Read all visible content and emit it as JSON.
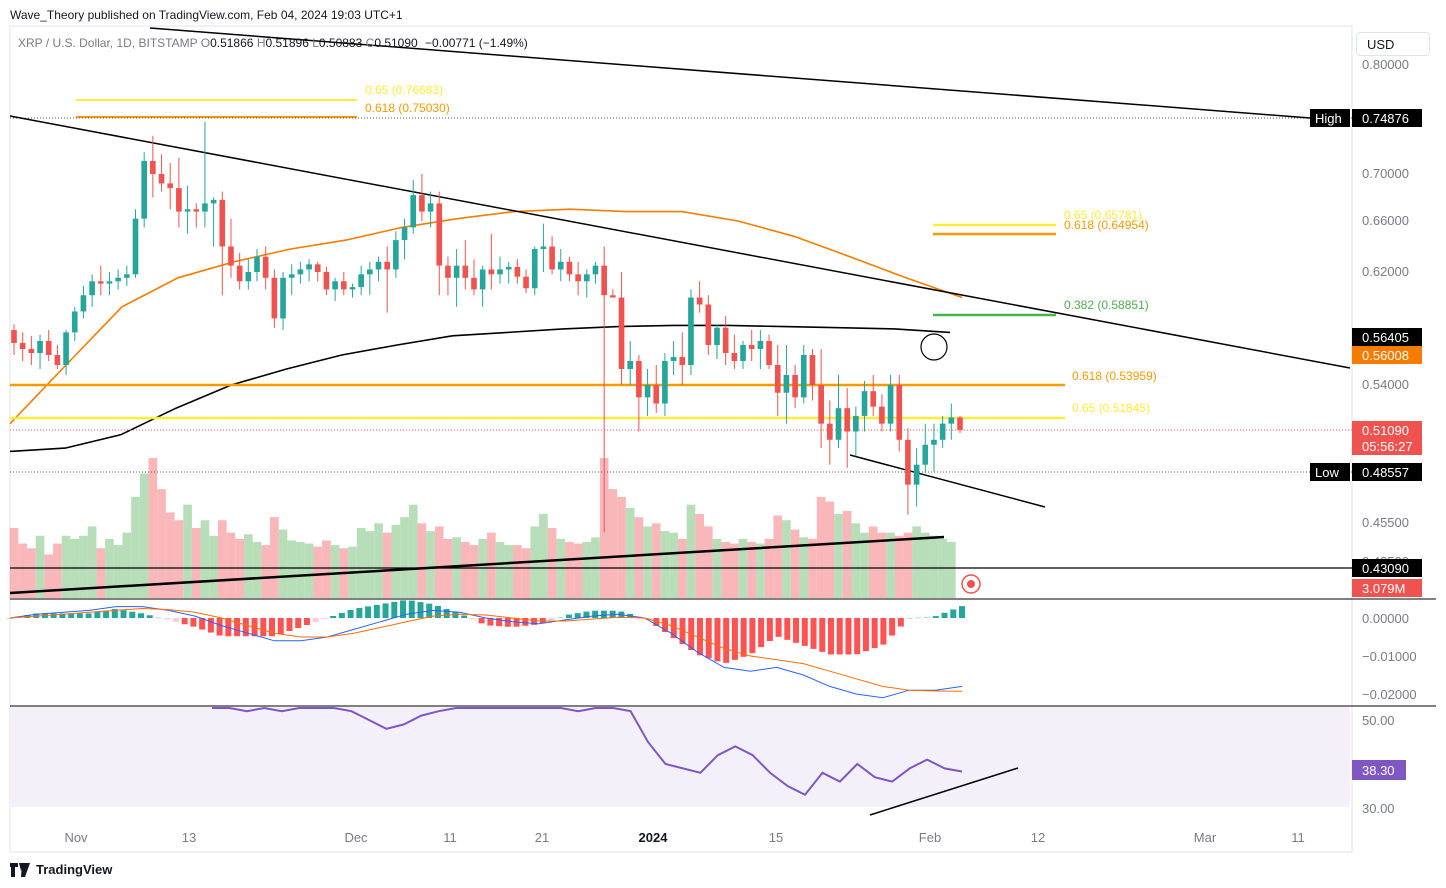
{
  "publisher": "Wave_Theory published on TradingView.com, Feb 04, 2024 19:03 UTC+1",
  "legend": {
    "symbol": "XRP / U.S. Dollar, 1D, BITSTAMP",
    "o_label": "O",
    "o": "0.51866",
    "h_label": "H",
    "h": "0.51896",
    "l_label": "L",
    "l": "0.50883",
    "c_label": "C",
    "c": "0.51090",
    "change": "−0.00771 (−1.49%)"
  },
  "currency_button": "USD",
  "footer": {
    "brand": "TradingView"
  },
  "colors": {
    "up": "#26a69a",
    "down": "#ef5350",
    "ema50": "#f57c00",
    "ema200": "#000000",
    "fib_yellow": "#ffeb3b",
    "fib_orange": "#f59a00",
    "fib_green": "#4caf50",
    "macd": "#2962ff",
    "signal": "#ff6d00",
    "rsi": "#7e57c2"
  },
  "chart_data": {
    "type": "candlestick",
    "x_ticks": [
      "Nov",
      "13",
      "Dec",
      "11",
      "21",
      "2024",
      "15",
      "Feb",
      "12",
      "Mar",
      "11"
    ],
    "price_axis": [
      "0.80000",
      "0.70000",
      "0.66000",
      "0.62000",
      "0.54000",
      "0.45500",
      "0.42500"
    ],
    "ylim": [
      0.42,
      0.81
    ],
    "candles": [
      [
        0.57,
        0.575,
        0.555,
        0.561
      ],
      [
        0.561,
        0.568,
        0.552,
        0.558
      ],
      [
        0.558,
        0.565,
        0.55,
        0.556
      ],
      [
        0.556,
        0.566,
        0.548,
        0.562
      ],
      [
        0.562,
        0.57,
        0.552,
        0.555
      ],
      [
        0.555,
        0.56,
        0.548,
        0.55
      ],
      [
        0.55,
        0.57,
        0.545,
        0.568
      ],
      [
        0.568,
        0.59,
        0.562,
        0.586
      ],
      [
        0.586,
        0.608,
        0.58,
        0.6
      ],
      [
        0.6,
        0.618,
        0.59,
        0.612
      ],
      [
        0.612,
        0.625,
        0.6,
        0.61
      ],
      [
        0.61,
        0.62,
        0.6,
        0.612
      ],
      [
        0.612,
        0.622,
        0.605,
        0.615
      ],
      [
        0.615,
        0.625,
        0.608,
        0.618
      ],
      [
        0.618,
        0.67,
        0.615,
        0.662
      ],
      [
        0.662,
        0.72,
        0.655,
        0.712
      ],
      [
        0.712,
        0.735,
        0.68,
        0.7
      ],
      [
        0.7,
        0.718,
        0.685,
        0.692
      ],
      [
        0.692,
        0.71,
        0.67,
        0.688
      ],
      [
        0.688,
        0.715,
        0.655,
        0.668
      ],
      [
        0.668,
        0.69,
        0.65,
        0.67
      ],
      [
        0.67,
        0.675,
        0.655,
        0.668
      ],
      [
        0.668,
        0.748,
        0.655,
        0.675
      ],
      [
        0.675,
        0.68,
        0.64,
        0.678
      ],
      [
        0.678,
        0.685,
        0.6,
        0.64
      ],
      [
        0.64,
        0.662,
        0.615,
        0.625
      ],
      [
        0.625,
        0.635,
        0.605,
        0.612
      ],
      [
        0.612,
        0.63,
        0.605,
        0.62
      ],
      [
        0.62,
        0.638,
        0.612,
        0.632
      ],
      [
        0.632,
        0.64,
        0.605,
        0.615
      ],
      [
        0.615,
        0.622,
        0.572,
        0.58
      ],
      [
        0.58,
        0.62,
        0.57,
        0.615
      ],
      [
        0.615,
        0.626,
        0.6,
        0.618
      ],
      [
        0.618,
        0.628,
        0.61,
        0.622
      ],
      [
        0.622,
        0.63,
        0.612,
        0.626
      ],
      [
        0.626,
        0.628,
        0.612,
        0.62
      ],
      [
        0.62,
        0.624,
        0.6,
        0.605
      ],
      [
        0.605,
        0.615,
        0.595,
        0.612
      ],
      [
        0.612,
        0.62,
        0.6,
        0.605
      ],
      [
        0.605,
        0.61,
        0.598,
        0.607
      ],
      [
        0.607,
        0.625,
        0.6,
        0.618
      ],
      [
        0.618,
        0.628,
        0.6,
        0.622
      ],
      [
        0.622,
        0.632,
        0.612,
        0.628
      ],
      [
        0.628,
        0.64,
        0.585,
        0.622
      ],
      [
        0.622,
        0.652,
        0.615,
        0.645
      ],
      [
        0.645,
        0.662,
        0.63,
        0.655
      ],
      [
        0.655,
        0.695,
        0.65,
        0.682
      ],
      [
        0.682,
        0.7,
        0.66,
        0.668
      ],
      [
        0.668,
        0.685,
        0.655,
        0.675
      ],
      [
        0.675,
        0.685,
        0.6,
        0.625
      ],
      [
        0.625,
        0.632,
        0.6,
        0.615
      ],
      [
        0.615,
        0.638,
        0.59,
        0.625
      ],
      [
        0.625,
        0.645,
        0.605,
        0.615
      ],
      [
        0.615,
        0.63,
        0.6,
        0.605
      ],
      [
        0.605,
        0.625,
        0.59,
        0.622
      ],
      [
        0.622,
        0.65,
        0.605,
        0.618
      ],
      [
        0.618,
        0.632,
        0.61,
        0.622
      ],
      [
        0.622,
        0.628,
        0.61,
        0.624
      ],
      [
        0.624,
        0.63,
        0.61,
        0.616
      ],
      [
        0.616,
        0.622,
        0.602,
        0.606
      ],
      [
        0.606,
        0.64,
        0.6,
        0.638
      ],
      [
        0.638,
        0.658,
        0.62,
        0.64
      ],
      [
        0.64,
        0.648,
        0.618,
        0.622
      ],
      [
        0.622,
        0.638,
        0.612,
        0.628
      ],
      [
        0.628,
        0.632,
        0.612,
        0.618
      ],
      [
        0.618,
        0.628,
        0.6,
        0.612
      ],
      [
        0.612,
        0.622,
        0.598,
        0.618
      ],
      [
        0.618,
        0.628,
        0.61,
        0.625
      ],
      [
        0.625,
        0.64,
        0.45,
        0.6
      ],
      [
        0.6,
        0.605,
        0.6,
        0.598
      ],
      [
        0.598,
        0.62,
        0.54,
        0.548
      ],
      [
        0.548,
        0.562,
        0.54,
        0.552
      ],
      [
        0.552,
        0.555,
        0.51,
        0.532
      ],
      [
        0.532,
        0.548,
        0.52,
        0.54
      ],
      [
        0.54,
        0.55,
        0.522,
        0.528
      ],
      [
        0.528,
        0.556,
        0.52,
        0.552
      ],
      [
        0.552,
        0.562,
        0.545,
        0.554
      ],
      [
        0.554,
        0.568,
        0.54,
        0.55
      ],
      [
        0.55,
        0.605,
        0.545,
        0.598
      ],
      [
        0.598,
        0.612,
        0.585,
        0.592
      ],
      [
        0.592,
        0.6,
        0.555,
        0.56
      ],
      [
        0.56,
        0.575,
        0.553,
        0.572
      ],
      [
        0.572,
        0.582,
        0.55,
        0.556
      ],
      [
        0.556,
        0.566,
        0.548,
        0.552
      ],
      [
        0.552,
        0.562,
        0.548,
        0.56
      ],
      [
        0.56,
        0.57,
        0.552,
        0.558
      ],
      [
        0.558,
        0.57,
        0.548,
        0.562
      ],
      [
        0.562,
        0.566,
        0.548,
        0.55
      ],
      [
        0.55,
        0.56,
        0.52,
        0.535
      ],
      [
        0.535,
        0.56,
        0.515,
        0.545
      ],
      [
        0.545,
        0.55,
        0.525,
        0.532
      ],
      [
        0.532,
        0.56,
        0.528,
        0.555
      ],
      [
        0.555,
        0.558,
        0.53,
        0.54
      ],
      [
        0.54,
        0.558,
        0.5,
        0.515
      ],
      [
        0.515,
        0.53,
        0.49,
        0.505
      ],
      [
        0.505,
        0.545,
        0.5,
        0.525
      ],
      [
        0.525,
        0.538,
        0.488,
        0.51
      ],
      [
        0.51,
        0.526,
        0.495,
        0.52
      ],
      [
        0.52,
        0.542,
        0.51,
        0.536
      ],
      [
        0.536,
        0.545,
        0.52,
        0.526
      ],
      [
        0.526,
        0.534,
        0.51,
        0.515
      ],
      [
        0.515,
        0.545,
        0.51,
        0.54
      ],
      [
        0.54,
        0.545,
        0.498,
        0.505
      ],
      [
        0.505,
        0.512,
        0.46,
        0.478
      ],
      [
        0.478,
        0.5,
        0.465,
        0.49
      ],
      [
        0.49,
        0.515,
        0.485,
        0.502
      ],
      [
        0.502,
        0.515,
        0.486,
        0.505
      ],
      [
        0.505,
        0.52,
        0.5,
        0.515
      ],
      [
        0.515,
        0.528,
        0.505,
        0.519
      ],
      [
        0.519,
        0.52,
        0.509,
        0.511
      ]
    ],
    "ema50": [
      0.515,
      0.55,
      0.59,
      0.615,
      0.628,
      0.638,
      0.645,
      0.655,
      0.662,
      0.668,
      0.67,
      0.668,
      0.668,
      0.66,
      0.648,
      0.632,
      0.615,
      0.598
    ],
    "ema200": [
      0.498,
      0.5,
      0.508,
      0.525,
      0.54,
      0.548,
      0.555,
      0.56,
      0.565,
      0.568,
      0.571,
      0.573,
      0.574,
      0.574,
      0.573,
      0.572,
      0.571,
      0.568
    ],
    "price_tags": [
      {
        "label": "",
        "value": "0.56405",
        "bg": "#000000",
        "fg": "#ffffff"
      },
      {
        "label": "",
        "value": "0.56008",
        "bg": "#f57c00",
        "fg": "#ffffff"
      },
      {
        "label": "",
        "value": "0.51090",
        "bg": "#ef5350",
        "fg": "#ffffff"
      },
      {
        "label": "",
        "value": "05:56:27",
        "bg": "#ef5350",
        "fg": "#ffffff"
      },
      {
        "label": "High",
        "value": "0.74876",
        "bg": "#000000",
        "fg": "#ffffff"
      },
      {
        "label": "Low",
        "value": "0.48557",
        "bg": "#000000",
        "fg": "#ffffff"
      },
      {
        "label": "",
        "value": "0.43090",
        "bg": "#000000",
        "fg": "#ffffff"
      },
      {
        "label": "",
        "value": "3.079M",
        "bg": "#ef5350",
        "fg": "#ffffff"
      }
    ],
    "fib_levels": [
      {
        "text": "0.65 (0.76683)",
        "color": "#ffeb3b"
      },
      {
        "text": "0.618 (0.75030)",
        "color": "#f59a00"
      },
      {
        "text": "0.65 (0.65781)",
        "color": "#ffeb3b"
      },
      {
        "text": "0.618 (0.64954)",
        "color": "#f59a00"
      },
      {
        "text": "0.382 (0.58851)",
        "color": "#4caf50"
      },
      {
        "text": "0.618 (0.53959)",
        "color": "#f59a00"
      },
      {
        "text": "0.65 (0.51845)",
        "color": "#ffeb3b"
      }
    ],
    "volume": [
      4.5,
      3.5,
      3.2,
      4,
      2.8,
      3.5,
      4,
      3.8,
      4,
      4.6,
      3.2,
      3.8,
      3.4,
      4.2,
      6.5,
      8,
      9,
      7,
      5.5,
      5,
      6,
      4.5,
      5,
      4,
      5,
      4.2,
      3.8,
      4.1,
      3.6,
      3.4,
      5.2,
      4.4,
      3.7,
      3.6,
      3.5,
      3.3,
      3.7,
      3.4,
      3.2,
      3.3,
      4.5,
      4.3,
      4.8,
      4.2,
      4.7,
      5.2,
      6,
      4.8,
      4.3,
      4.6,
      3.8,
      3.9,
      3.6,
      3.4,
      3.8,
      4.2,
      3.6,
      3.4,
      3.4,
      3.2,
      4.6,
      5.4,
      4.5,
      3.8,
      3.6,
      3.5,
      3.6,
      3.9,
      9,
      7,
      6.5,
      5.8,
      5.2,
      4.6,
      4.8,
      4.3,
      4.2,
      3.8,
      6,
      5.4,
      4.6,
      3.8,
      3.6,
      3.5,
      3.8,
      3.6,
      3.5,
      3.8,
      5.3,
      5,
      4.4,
      3.9,
      3.8,
      6.5,
      6.2,
      5.4,
      5.6,
      4.8,
      4.2,
      4.6,
      4.2,
      4.2,
      4,
      4.2,
      4.6,
      4.2,
      4,
      3.8,
      3.6
    ],
    "volume_axis_label": "",
    "macd_axis": [
      "0.00000",
      "−0.01000",
      "−0.02000"
    ],
    "macd_line": [
      0.0,
      0.001,
      0.0015,
      0.002,
      0.003,
      0.003,
      0.002,
      0.0005,
      -0.002,
      -0.004,
      -0.006,
      -0.006,
      -0.005,
      -0.003,
      -0.001,
      0.001,
      0.002,
      0.0015,
      0.0,
      -0.001,
      -0.0015,
      -0.0005,
      0.0005,
      0.001,
      0.0,
      -0.004,
      -0.009,
      -0.013,
      -0.014,
      -0.013,
      -0.015,
      -0.018,
      -0.02,
      -0.021,
      -0.019,
      -0.019,
      -0.018
    ],
    "signal_line": [
      0.0,
      0.0005,
      0.001,
      0.0015,
      0.002,
      0.0025,
      0.0022,
      0.0015,
      0.0,
      -0.002,
      -0.004,
      -0.005,
      -0.005,
      -0.004,
      -0.0025,
      -0.001,
      0.0005,
      0.001,
      0.0008,
      0.0,
      -0.0008,
      -0.0008,
      -0.0003,
      0.0002,
      0.0,
      -0.002,
      -0.005,
      -0.008,
      -0.01,
      -0.011,
      -0.012,
      -0.014,
      -0.016,
      -0.018,
      -0.019,
      -0.0192,
      -0.0193
    ],
    "rsi_axis": [
      "50.00",
      "30.00"
    ],
    "rsi_value": "38.30",
    "rsi": [
      54,
      53,
      52,
      53,
      52,
      54,
      55,
      53,
      52,
      50,
      48,
      49,
      51,
      52,
      54,
      56,
      55,
      53,
      54,
      55,
      53,
      52,
      54,
      56,
      52,
      45,
      40,
      39,
      38,
      42,
      44,
      42,
      38,
      35,
      33,
      38,
      36,
      40,
      37,
      36,
      39,
      41,
      39,
      38.3
    ]
  }
}
